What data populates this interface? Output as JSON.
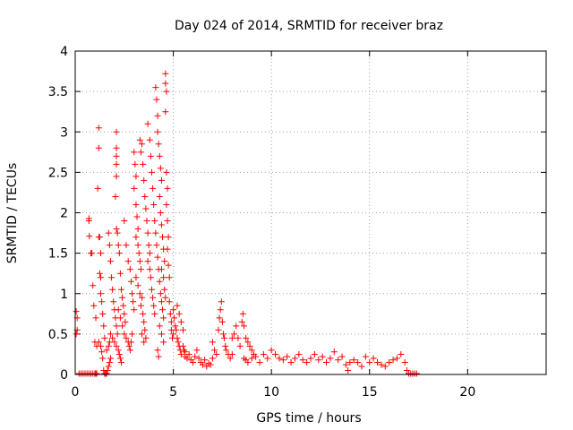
{
  "chart_data": {
    "type": "scatter",
    "title": "Day 024 of 2014, SRMTID for receiver braz",
    "xlabel": "GPS time / hours",
    "ylabel": "SRMTID / TECUs",
    "xlim": [
      0,
      24
    ],
    "ylim": [
      0,
      4
    ],
    "x_ticks": [
      0,
      5,
      10,
      15,
      20
    ],
    "y_ticks": [
      0,
      0.5,
      1,
      1.5,
      2,
      2.5,
      3,
      3.5,
      4
    ],
    "x_tick_labels": [
      "0",
      "5",
      "10",
      "15",
      "20"
    ],
    "y_tick_labels": [
      "0",
      "0.5",
      "1",
      "1.5",
      "2",
      "2.5",
      "3",
      "3.5",
      "4"
    ],
    "grid": true,
    "marker": "+",
    "colors": {
      "series": "#ff0000",
      "grid": "#a0a0a0",
      "axis": "#000000"
    },
    "series": [
      {
        "name": "SRMTID",
        "points": [
          [
            0.05,
            0.78
          ],
          [
            0.05,
            0.5
          ],
          [
            0.1,
            0.7
          ],
          [
            0.1,
            0.55
          ],
          [
            0.2,
            0.01
          ],
          [
            0.3,
            0.0
          ],
          [
            0.4,
            0.0
          ],
          [
            0.5,
            0.01
          ],
          [
            0.6,
            0.0
          ],
          [
            0.7,
            0.0
          ],
          [
            0.8,
            0.01
          ],
          [
            0.9,
            0.0
          ],
          [
            1.0,
            0.0
          ],
          [
            1.05,
            0.01
          ],
          [
            1.1,
            0.0
          ],
          [
            0.7,
            1.93
          ],
          [
            0.7,
            1.9
          ],
          [
            0.72,
            1.71
          ],
          [
            0.8,
            1.5
          ],
          [
            0.85,
            1.5
          ],
          [
            0.9,
            1.1
          ],
          [
            0.95,
            0.85
          ],
          [
            1.0,
            0.4
          ],
          [
            1.05,
            0.7
          ],
          [
            1.1,
            0.35
          ],
          [
            1.2,
            3.05
          ],
          [
            1.2,
            2.8
          ],
          [
            1.15,
            2.3
          ],
          [
            1.2,
            1.7
          ],
          [
            1.25,
            1.7
          ],
          [
            1.3,
            1.5
          ],
          [
            1.25,
            1.25
          ],
          [
            1.3,
            1.2
          ],
          [
            1.3,
            1.0
          ],
          [
            1.35,
            0.9
          ],
          [
            1.4,
            0.75
          ],
          [
            1.45,
            0.6
          ],
          [
            1.5,
            0.45
          ],
          [
            1.2,
            0.4
          ],
          [
            1.3,
            0.35
          ],
          [
            1.35,
            0.28
          ],
          [
            1.4,
            0.2
          ],
          [
            1.45,
            0.05
          ],
          [
            1.5,
            0.0
          ],
          [
            1.55,
            0.01
          ],
          [
            1.6,
            0.0
          ],
          [
            1.65,
            0.05
          ],
          [
            1.7,
            0.1
          ],
          [
            1.75,
            0.15
          ],
          [
            1.8,
            0.2
          ],
          [
            1.6,
            0.3
          ],
          [
            1.7,
            0.35
          ],
          [
            1.75,
            0.4
          ],
          [
            1.7,
            1.75
          ],
          [
            1.75,
            1.6
          ],
          [
            1.8,
            1.4
          ],
          [
            1.85,
            1.2
          ],
          [
            1.9,
            1.05
          ],
          [
            1.95,
            0.9
          ],
          [
            2.0,
            0.8
          ],
          [
            2.05,
            0.7
          ],
          [
            2.1,
            0.6
          ],
          [
            2.15,
            0.5
          ],
          [
            1.8,
            0.5
          ],
          [
            1.9,
            0.45
          ],
          [
            2.0,
            0.4
          ],
          [
            2.1,
            0.35
          ],
          [
            2.2,
            0.3
          ],
          [
            2.25,
            0.25
          ],
          [
            2.3,
            0.2
          ],
          [
            2.35,
            0.15
          ],
          [
            2.1,
            3.0
          ],
          [
            2.1,
            2.8
          ],
          [
            2.1,
            2.7
          ],
          [
            2.1,
            2.6
          ],
          [
            2.1,
            2.45
          ],
          [
            2.05,
            2.2
          ],
          [
            2.1,
            1.8
          ],
          [
            2.15,
            1.75
          ],
          [
            2.2,
            1.6
          ],
          [
            2.25,
            1.5
          ],
          [
            2.3,
            1.25
          ],
          [
            2.35,
            1.05
          ],
          [
            2.4,
            0.95
          ],
          [
            2.45,
            0.85
          ],
          [
            2.5,
            0.75
          ],
          [
            2.55,
            0.65
          ],
          [
            2.2,
            0.8
          ],
          [
            2.3,
            0.7
          ],
          [
            2.4,
            0.6
          ],
          [
            2.5,
            0.5
          ],
          [
            2.6,
            0.45
          ],
          [
            2.7,
            0.4
          ],
          [
            2.75,
            0.35
          ],
          [
            2.8,
            0.3
          ],
          [
            2.85,
            0.4
          ],
          [
            2.9,
            0.5
          ],
          [
            2.5,
            1.9
          ],
          [
            2.6,
            1.6
          ],
          [
            2.7,
            1.4
          ],
          [
            2.8,
            1.3
          ],
          [
            2.85,
            1.15
          ],
          [
            2.9,
            1.0
          ],
          [
            2.95,
            0.9
          ],
          [
            3.0,
            0.8
          ],
          [
            3.0,
            2.75
          ],
          [
            3.05,
            2.6
          ],
          [
            3.1,
            2.45
          ],
          [
            3.0,
            2.3
          ],
          [
            3.1,
            2.1
          ],
          [
            3.15,
            1.95
          ],
          [
            3.2,
            1.8
          ],
          [
            3.1,
            1.7
          ],
          [
            3.2,
            1.6
          ],
          [
            3.25,
            1.5
          ],
          [
            3.3,
            1.4
          ],
          [
            3.35,
            1.3
          ],
          [
            3.1,
            1.2
          ],
          [
            3.2,
            1.1
          ],
          [
            3.3,
            1.0
          ],
          [
            3.4,
            0.95
          ],
          [
            3.35,
            0.85
          ],
          [
            3.45,
            0.75
          ],
          [
            3.5,
            0.65
          ],
          [
            3.55,
            0.55
          ],
          [
            3.6,
            0.45
          ],
          [
            3.4,
            0.5
          ],
          [
            3.5,
            0.4
          ],
          [
            3.3,
            2.9
          ],
          [
            3.35,
            2.75
          ],
          [
            3.4,
            2.85
          ],
          [
            3.45,
            2.6
          ],
          [
            3.5,
            2.4
          ],
          [
            3.55,
            2.2
          ],
          [
            3.6,
            2.05
          ],
          [
            3.65,
            1.9
          ],
          [
            3.7,
            1.75
          ],
          [
            3.75,
            1.6
          ],
          [
            3.8,
            1.5
          ],
          [
            3.7,
            1.4
          ],
          [
            3.8,
            1.3
          ],
          [
            3.85,
            1.2
          ],
          [
            3.9,
            1.05
          ],
          [
            3.95,
            0.95
          ],
          [
            4.0,
            0.85
          ],
          [
            4.05,
            0.75
          ],
          [
            3.7,
            3.1
          ],
          [
            3.8,
            2.9
          ],
          [
            3.85,
            2.7
          ],
          [
            3.9,
            2.5
          ],
          [
            3.95,
            2.3
          ],
          [
            4.0,
            2.1
          ],
          [
            4.05,
            1.9
          ],
          [
            4.1,
            1.75
          ],
          [
            4.15,
            1.6
          ],
          [
            4.2,
            1.45
          ],
          [
            4.25,
            1.3
          ],
          [
            4.3,
            1.15
          ],
          [
            4.35,
            1.0
          ],
          [
            4.4,
            0.9
          ],
          [
            4.45,
            0.8
          ],
          [
            4.5,
            0.7
          ],
          [
            4.1,
            3.55
          ],
          [
            4.15,
            3.4
          ],
          [
            4.2,
            3.2
          ],
          [
            4.2,
            3.0
          ],
          [
            4.25,
            2.85
          ],
          [
            4.3,
            2.7
          ],
          [
            4.35,
            2.55
          ],
          [
            4.4,
            2.4
          ],
          [
            4.3,
            2.2
          ],
          [
            4.35,
            2.0
          ],
          [
            4.4,
            1.85
          ],
          [
            4.45,
            1.7
          ],
          [
            4.5,
            1.55
          ],
          [
            4.55,
            1.4
          ],
          [
            4.4,
            1.3
          ],
          [
            4.5,
            1.2
          ],
          [
            4.55,
            1.05
          ],
          [
            4.6,
            0.95
          ],
          [
            4.3,
            0.6
          ],
          [
            4.4,
            0.5
          ],
          [
            4.5,
            0.4
          ],
          [
            4.2,
            0.3
          ],
          [
            4.25,
            0.22
          ],
          [
            4.6,
            3.72
          ],
          [
            4.6,
            3.6
          ],
          [
            4.65,
            3.5
          ],
          [
            4.6,
            3.25
          ],
          [
            4.65,
            2.5
          ],
          [
            4.7,
            2.3
          ],
          [
            4.65,
            2.1
          ],
          [
            4.7,
            1.9
          ],
          [
            4.75,
            1.7
          ],
          [
            4.7,
            1.55
          ],
          [
            4.75,
            1.35
          ],
          [
            4.8,
            1.2
          ],
          [
            4.8,
            0.9
          ],
          [
            4.85,
            0.75
          ],
          [
            4.9,
            0.65
          ],
          [
            4.9,
            0.55
          ],
          [
            4.95,
            0.45
          ],
          [
            5.0,
            0.5
          ],
          [
            5.0,
            0.8
          ],
          [
            5.05,
            0.7
          ],
          [
            5.1,
            0.6
          ],
          [
            5.15,
            0.55
          ],
          [
            5.2,
            0.45
          ],
          [
            5.25,
            0.4
          ],
          [
            5.3,
            0.35
          ],
          [
            5.35,
            0.3
          ],
          [
            5.4,
            0.25
          ],
          [
            5.5,
            0.35
          ],
          [
            5.55,
            0.3
          ],
          [
            5.6,
            0.28
          ],
          [
            5.2,
            0.85
          ],
          [
            5.3,
            0.75
          ],
          [
            5.4,
            0.65
          ],
          [
            5.5,
            0.55
          ],
          [
            5.6,
            0.22
          ],
          [
            5.7,
            0.2
          ],
          [
            5.8,
            0.25
          ],
          [
            5.9,
            0.18
          ],
          [
            6.0,
            0.15
          ],
          [
            6.1,
            0.22
          ],
          [
            6.2,
            0.3
          ],
          [
            6.3,
            0.2
          ],
          [
            6.4,
            0.15
          ],
          [
            6.5,
            0.12
          ],
          [
            6.6,
            0.18
          ],
          [
            6.7,
            0.1
          ],
          [
            6.8,
            0.14
          ],
          [
            6.9,
            0.12
          ],
          [
            7.0,
            0.2
          ],
          [
            7.0,
            0.4
          ],
          [
            7.1,
            0.3
          ],
          [
            7.2,
            0.25
          ],
          [
            7.3,
            0.55
          ],
          [
            7.35,
            0.7
          ],
          [
            7.4,
            0.8
          ],
          [
            7.45,
            0.9
          ],
          [
            7.5,
            0.65
          ],
          [
            7.55,
            0.5
          ],
          [
            7.6,
            0.45
          ],
          [
            7.65,
            0.35
          ],
          [
            7.7,
            0.3
          ],
          [
            7.8,
            0.25
          ],
          [
            7.9,
            0.2
          ],
          [
            8.0,
            0.25
          ],
          [
            8.0,
            0.45
          ],
          [
            8.1,
            0.5
          ],
          [
            8.2,
            0.6
          ],
          [
            8.3,
            0.45
          ],
          [
            8.4,
            0.35
          ],
          [
            8.5,
            0.65
          ],
          [
            8.55,
            0.75
          ],
          [
            8.6,
            0.6
          ],
          [
            8.7,
            0.45
          ],
          [
            8.8,
            0.4
          ],
          [
            8.9,
            0.35
          ],
          [
            9.0,
            0.3
          ],
          [
            9.1,
            0.25
          ],
          [
            8.6,
            0.2
          ],
          [
            8.7,
            0.18
          ],
          [
            8.8,
            0.15
          ],
          [
            9.0,
            0.2
          ],
          [
            9.2,
            0.22
          ],
          [
            9.4,
            0.15
          ],
          [
            9.6,
            0.25
          ],
          [
            9.8,
            0.2
          ],
          [
            10.0,
            0.3
          ],
          [
            10.2,
            0.25
          ],
          [
            10.4,
            0.2
          ],
          [
            10.6,
            0.18
          ],
          [
            10.8,
            0.22
          ],
          [
            11.0,
            0.15
          ],
          [
            11.2,
            0.2
          ],
          [
            11.4,
            0.25
          ],
          [
            11.6,
            0.18
          ],
          [
            11.8,
            0.15
          ],
          [
            12.0,
            0.2
          ],
          [
            12.2,
            0.25
          ],
          [
            12.4,
            0.18
          ],
          [
            12.6,
            0.22
          ],
          [
            12.8,
            0.15
          ],
          [
            13.0,
            0.2
          ],
          [
            13.2,
            0.28
          ],
          [
            13.4,
            0.18
          ],
          [
            13.6,
            0.22
          ],
          [
            13.8,
            0.12
          ],
          [
            13.9,
            0.05
          ],
          [
            14.0,
            0.15
          ],
          [
            14.2,
            0.18
          ],
          [
            14.4,
            0.15
          ],
          [
            14.6,
            0.1
          ],
          [
            14.8,
            0.22
          ],
          [
            15.0,
            0.15
          ],
          [
            15.2,
            0.2
          ],
          [
            15.4,
            0.15
          ],
          [
            15.6,
            0.12
          ],
          [
            15.8,
            0.1
          ],
          [
            16.0,
            0.15
          ],
          [
            16.2,
            0.18
          ],
          [
            16.4,
            0.2
          ],
          [
            16.6,
            0.25
          ],
          [
            16.8,
            0.15
          ],
          [
            16.9,
            0.05
          ],
          [
            17.0,
            0.0
          ],
          [
            17.1,
            0.0
          ],
          [
            17.2,
            0.0
          ],
          [
            17.3,
            0.0
          ],
          [
            17.4,
            0.0
          ]
        ]
      }
    ]
  }
}
